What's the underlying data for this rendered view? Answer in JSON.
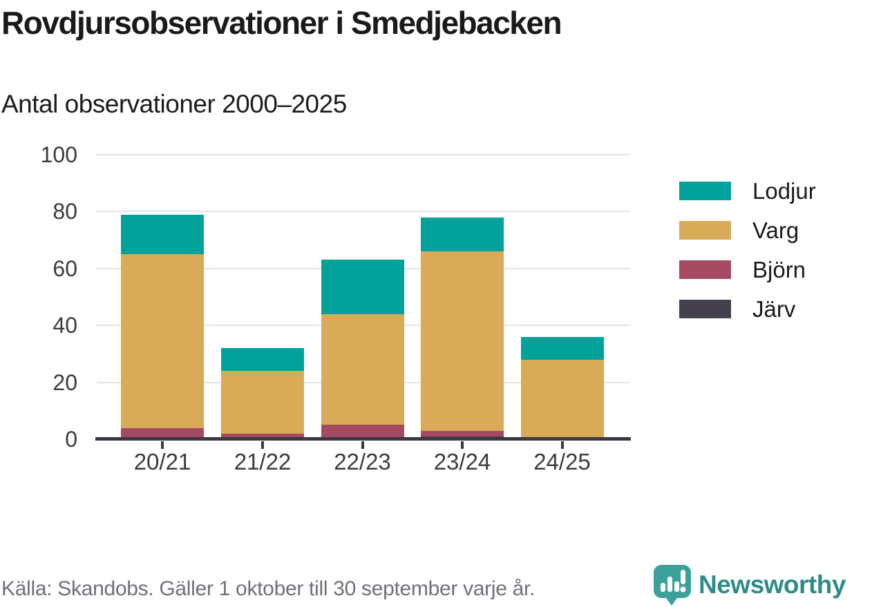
{
  "header": {
    "title": "Rovdjursobservationer i Smedjebacken",
    "subtitle": "Antal observationer 2000–2025"
  },
  "chart_data": {
    "type": "bar",
    "stacked": true,
    "title": "Rovdjursobservationer i Smedjebacken",
    "subtitle": "Antal observationer 2000–2025",
    "categories": [
      "20/21",
      "21/22",
      "22/23",
      "23/24",
      "24/25"
    ],
    "series": [
      {
        "name": "Järv",
        "color": "#45404e",
        "values": [
          0,
          0,
          0,
          1,
          0
        ]
      },
      {
        "name": "Björn",
        "color": "#a64a63",
        "values": [
          4,
          2,
          5,
          2,
          0
        ]
      },
      {
        "name": "Varg",
        "color": "#d9ab58",
        "values": [
          61,
          22,
          39,
          63,
          28
        ]
      },
      {
        "name": "Lodjur",
        "color": "#00a29a",
        "values": [
          14,
          8,
          19,
          12,
          8
        ]
      }
    ],
    "totals": [
      79,
      32,
      63,
      78,
      36
    ],
    "xlabel": "",
    "ylabel": "",
    "ylim": [
      0,
      100
    ],
    "yticks": [
      0,
      20,
      40,
      60,
      80,
      100
    ],
    "grid": true,
    "legend": {
      "position": "right",
      "order": [
        "Lodjur",
        "Varg",
        "Björn",
        "Järv"
      ]
    },
    "colors": {
      "gridline": "#e4e4e4",
      "axis": "#3a3942",
      "tick_text": "#3b3b3b"
    }
  },
  "footer": {
    "source_note": "Källa: Skandobs. Gäller 1 oktober till 30 september varje år.",
    "brand_name": "Newsworthy",
    "brand_color": "#2d8b8a",
    "brand_icon_color": "#3ba19a"
  }
}
